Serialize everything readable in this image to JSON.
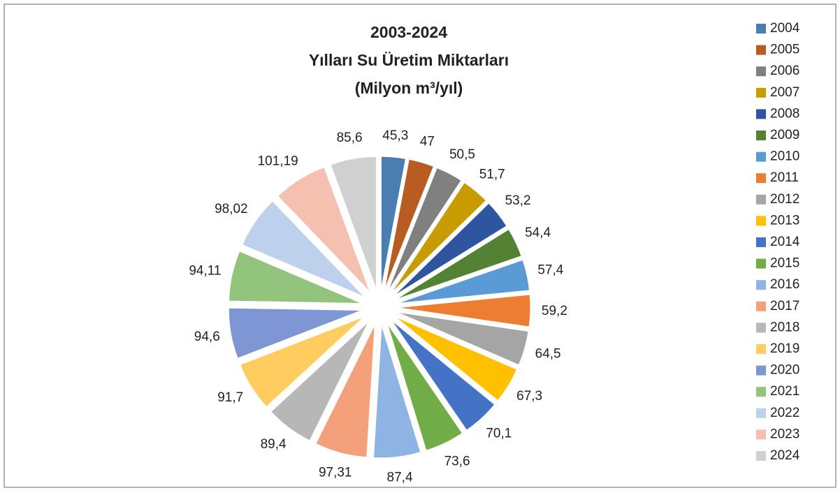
{
  "chart_data": {
    "type": "pie",
    "title": [
      "2003-2024",
      "Yılları Su Üretim Miktarları",
      "(Milyon m³/yıl)"
    ],
    "categories": [
      "2004",
      "2005",
      "2006",
      "2007",
      "2008",
      "2009",
      "2010",
      "2011",
      "2012",
      "2013",
      "2014",
      "2015",
      "2016",
      "2017",
      "2018",
      "2019",
      "2020",
      "2021",
      "2022",
      "2023",
      "2024"
    ],
    "values": [
      45.3,
      47,
      50.5,
      51.7,
      53.2,
      54.4,
      57.4,
      59.2,
      64.5,
      67.3,
      70.1,
      73.6,
      87.4,
      97.31,
      89.4,
      91.7,
      94.6,
      94.11,
      98.02,
      101.19,
      85.6
    ],
    "value_labels": [
      "45,3",
      "47",
      "50,5",
      "51,7",
      "53,2",
      "54,4",
      "57,4",
      "59,2",
      "64,5",
      "67,3",
      "70,1",
      "73,6",
      "87,4",
      "97,31",
      "89,4",
      "91,7",
      "94,6",
      "94,11",
      "98,02",
      "101,19",
      "85,6"
    ],
    "colors": [
      "#4a7eb0",
      "#b85c22",
      "#808080",
      "#c89b00",
      "#2f55a0",
      "#548235",
      "#5b9bd5",
      "#ed7d31",
      "#a5a5a5",
      "#ffc000",
      "#4472c4",
      "#70ad47",
      "#8eb4e3",
      "#f4a07a",
      "#b7b7b7",
      "#ffcd5f",
      "#7f96d4",
      "#93c47d",
      "#bdd0ec",
      "#f5c0b0",
      "#d0d0d0"
    ],
    "legend": "right"
  }
}
